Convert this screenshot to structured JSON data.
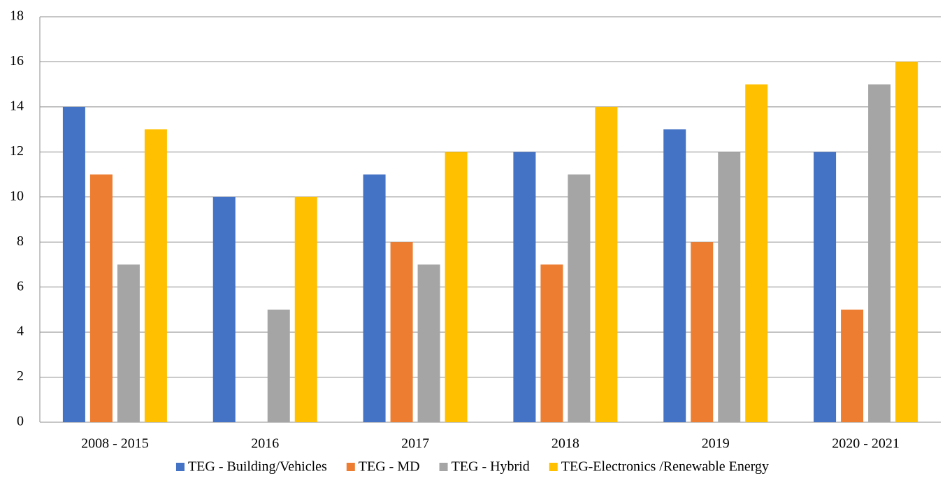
{
  "chart_data": {
    "type": "bar",
    "categories": [
      "2008 - 2015",
      "2016",
      "2017",
      "2018",
      "2019",
      "2020 - 2021"
    ],
    "series": [
      {
        "name": "TEG - Building/Vehicles",
        "color": "#4472c4",
        "values": [
          14,
          10,
          11,
          12,
          13,
          12
        ]
      },
      {
        "name": "TEG - MD",
        "color": "#ed7d31",
        "values": [
          11,
          0,
          8,
          7,
          8,
          5
        ]
      },
      {
        "name": "TEG - Hybrid",
        "color": "#a5a5a5",
        "values": [
          7,
          5,
          7,
          11,
          12,
          15
        ]
      },
      {
        "name": "TEG-Electronics /Renewable Energy",
        "color": "#ffc000",
        "values": [
          13,
          10,
          12,
          14,
          15,
          16
        ]
      }
    ],
    "ylim": [
      0,
      18
    ],
    "yticks": [
      0,
      2,
      4,
      6,
      8,
      10,
      12,
      14,
      16,
      18
    ],
    "grid": true,
    "legend": "bottom"
  }
}
